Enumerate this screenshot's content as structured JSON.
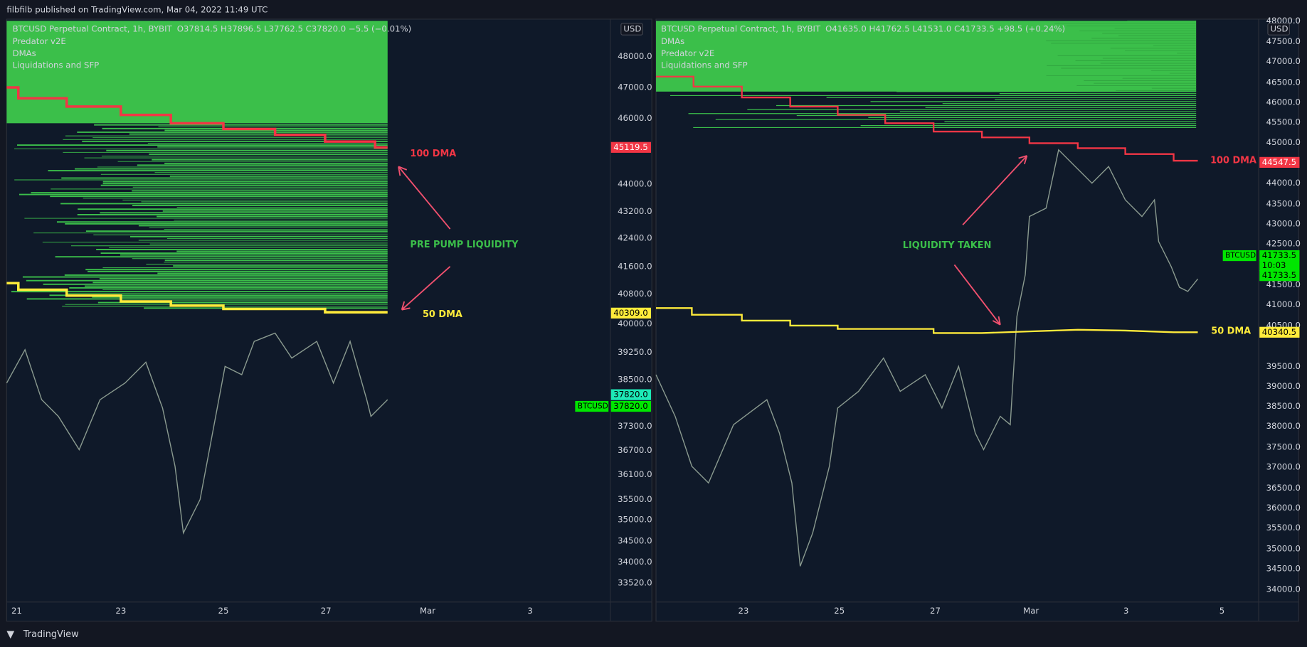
{
  "header": {
    "publisher": "filbfilb published on TradingView.com, Mar 04, 2022 11:49 UTC"
  },
  "panels": [
    {
      "legend": {
        "symbol": "BTCUSD Perpetual Contract, 1h, BYBIT",
        "ohlc": "O37814.5  H37896.5  L37762.5  C37820.0  −5.5 (−0.01%)",
        "indicators": [
          "Predator v2E",
          "DMAs",
          "Liquidations and SFP"
        ]
      },
      "currency": "USD",
      "price_axis": [
        "48000.0",
        "47000.0",
        "46000.0",
        "44000.0",
        "43200.0",
        "42400.0",
        "41600.0",
        "40800.0",
        "40000.0",
        "39250.0",
        "38500.0",
        "37300.0",
        "36700.0",
        "36100.0",
        "35500.0",
        "35000.0",
        "34500.0",
        "34000.0",
        "33520.0"
      ],
      "time_axis": [
        "21",
        "23",
        "25",
        "27",
        "Mar",
        "3"
      ],
      "price_tags": [
        "45119.5",
        "40309.0",
        "37820.0",
        "37820.0"
      ],
      "symbol_tag": "BTCUSD",
      "annotations": [
        "100 DMA",
        "PRE PUMP LIQUIDITY",
        "50 DMA"
      ]
    },
    {
      "legend": {
        "symbol": "BTCUSD Perpetual Contract, 1h, BYBIT",
        "ohlc": "O41635.0  H41762.5  L41531.0  C41733.5  +98.5 (+0.24%)",
        "indicators": [
          "DMAs",
          "Predator v2E",
          "Liquidations and SFP"
        ]
      },
      "currency": "USD",
      "price_axis": [
        "48000.0",
        "47500.0",
        "47000.0",
        "46500.0",
        "46000.0",
        "45500.0",
        "45000.0",
        "44000.0",
        "43500.0",
        "43000.0",
        "42500.0",
        "41500.0",
        "41000.0",
        "40500.0",
        "39500.0",
        "39000.0",
        "38500.0",
        "38000.0",
        "37500.0",
        "37000.0",
        "36500.0",
        "36000.0",
        "35500.0",
        "35000.0",
        "34500.0",
        "34000.0"
      ],
      "time_axis": [
        "23",
        "25",
        "27",
        "Mar",
        "3",
        "5"
      ],
      "price_tags": [
        "44547.5",
        "41733.5",
        "10:03",
        "41733.5",
        "40340.5"
      ],
      "symbol_tag": "BTCUSD",
      "annotations": [
        "LIQUIDITY TAKEN",
        "100 DMA",
        "50 DMA"
      ]
    }
  ],
  "footer": {
    "brand": "TradingView"
  }
}
